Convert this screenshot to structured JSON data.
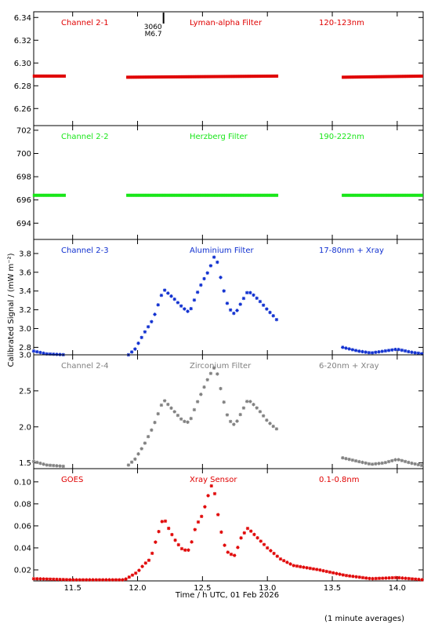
{
  "chart_data": [
    {
      "type": "scatter",
      "labels": [
        "Channel 2-1",
        "Lyman-alpha Filter",
        "120-123nm"
      ],
      "color": "#e00000",
      "ylim": [
        6.245,
        6.345
      ],
      "yticks": [
        6.26,
        6.28,
        6.3,
        6.32,
        6.34
      ],
      "ytick_labels": [
        "6.26",
        "6.28",
        "6.30",
        "6.32",
        "6.34"
      ],
      "annotation": {
        "x": 12.2,
        "lines": [
          "3060",
          "M6.7"
        ]
      },
      "segments": [
        {
          "x": [
            11.2,
            11.45
          ],
          "y": [
            6.2885,
            6.2885
          ]
        },
        {
          "x": [
            11.92,
            13.08
          ],
          "y": [
            6.2875,
            6.2885
          ]
        },
        {
          "x": [
            13.58,
            14.2
          ],
          "y": [
            6.2875,
            6.2885
          ]
        }
      ]
    },
    {
      "type": "scatter",
      "labels": [
        "Channel 2-2",
        "Herzberg Filter",
        "190-222nm"
      ],
      "color": "#19e619",
      "ylim": [
        692.6,
        702.4
      ],
      "yticks": [
        694,
        696,
        698,
        700,
        702
      ],
      "ytick_labels": [
        "694",
        "696",
        "698",
        "700",
        "702"
      ],
      "segments": [
        {
          "x": [
            11.2,
            11.45
          ],
          "y": [
            696.4,
            696.4
          ]
        },
        {
          "x": [
            11.92,
            13.08
          ],
          "y": [
            696.4,
            696.4
          ]
        },
        {
          "x": [
            13.58,
            14.2
          ],
          "y": [
            696.4,
            696.4
          ]
        }
      ]
    },
    {
      "type": "scatter",
      "labels": [
        "Channel 2-3",
        "Aluminium Filter",
        "17-80nm + Xray"
      ],
      "color": "#1030d0",
      "ylim": [
        2.72,
        3.95
      ],
      "yticks": [
        2.8,
        3.0,
        3.2,
        3.4,
        3.6,
        3.8
      ],
      "ytick_labels": [
        "2.8",
        "3.0",
        "3.2",
        "3.4",
        "3.6",
        "3.8"
      ],
      "series": [
        {
          "x": [
            11.2,
            11.3,
            11.45
          ],
          "y": [
            2.76,
            2.73,
            2.72
          ]
        },
        {
          "x": [
            11.93,
            11.98,
            12.05,
            12.12,
            12.2,
            12.28,
            12.35,
            12.4,
            12.45,
            12.5,
            12.55,
            12.6,
            12.65,
            12.7,
            12.75,
            12.8,
            12.85,
            12.9,
            12.95,
            13.0,
            13.05,
            13.08
          ],
          "y": [
            2.72,
            2.78,
            2.95,
            3.1,
            3.42,
            3.32,
            3.22,
            3.17,
            3.35,
            3.5,
            3.62,
            3.8,
            3.48,
            3.22,
            3.15,
            3.28,
            3.4,
            3.35,
            3.28,
            3.2,
            3.13,
            3.08
          ]
        },
        {
          "x": [
            13.58,
            13.7,
            13.8,
            13.9,
            14.0,
            14.1,
            14.2
          ],
          "y": [
            2.8,
            2.76,
            2.74,
            2.76,
            2.78,
            2.75,
            2.73
          ]
        }
      ]
    },
    {
      "type": "scatter",
      "labels": [
        "Channel 2-4",
        "Zirconium Filter",
        "6-20nm + Xray"
      ],
      "color": "#808080",
      "ylim": [
        1.42,
        3.0
      ],
      "yticks": [
        1.5,
        2.0,
        2.5,
        3.0
      ],
      "ytick_labels": [
        "1.5",
        "2.0",
        "2.5",
        "3.0"
      ],
      "series": [
        {
          "x": [
            11.2,
            11.3,
            11.45
          ],
          "y": [
            1.52,
            1.47,
            1.45
          ]
        },
        {
          "x": [
            11.93,
            11.98,
            12.05,
            12.12,
            12.2,
            12.28,
            12.35,
            12.4,
            12.45,
            12.5,
            12.55,
            12.6,
            12.65,
            12.7,
            12.75,
            12.8,
            12.85,
            12.9,
            12.95,
            13.0,
            13.05,
            13.08
          ],
          "y": [
            1.47,
            1.55,
            1.75,
            2.0,
            2.38,
            2.22,
            2.08,
            2.06,
            2.3,
            2.5,
            2.7,
            2.85,
            2.45,
            2.1,
            2.02,
            2.2,
            2.38,
            2.3,
            2.2,
            2.08,
            2.0,
            1.96
          ]
        },
        {
          "x": [
            13.58,
            13.7,
            13.8,
            13.9,
            14.0,
            14.1,
            14.2
          ],
          "y": [
            1.57,
            1.52,
            1.48,
            1.5,
            1.55,
            1.5,
            1.46
          ]
        }
      ]
    },
    {
      "type": "scatter",
      "labels": [
        "GOES",
        "Xray Sensor",
        "0.1-0.8nm"
      ],
      "color": "#e00000",
      "ylim": [
        0.01,
        0.112
      ],
      "yticks": [
        0.02,
        0.04,
        0.06,
        0.08,
        0.1
      ],
      "ytick_labels": [
        "0.02",
        "0.04",
        "0.06",
        "0.08",
        "0.10"
      ],
      "series": [
        {
          "x": [
            11.2,
            11.5,
            11.9,
            12.0,
            12.05,
            12.1,
            12.15,
            12.2,
            12.25,
            12.3,
            12.35,
            12.4,
            12.45,
            12.5,
            12.55,
            12.58,
            12.62,
            12.66,
            12.7,
            12.75,
            12.8,
            12.85,
            12.9,
            13.0,
            13.1,
            13.2,
            13.4,
            13.6,
            13.8,
            14.0,
            14.2
          ],
          "y": [
            0.012,
            0.011,
            0.011,
            0.018,
            0.025,
            0.03,
            0.05,
            0.068,
            0.055,
            0.045,
            0.038,
            0.038,
            0.06,
            0.07,
            0.09,
            0.1,
            0.07,
            0.045,
            0.035,
            0.033,
            0.05,
            0.058,
            0.052,
            0.04,
            0.03,
            0.024,
            0.02,
            0.015,
            0.012,
            0.013,
            0.011
          ]
        }
      ]
    }
  ],
  "axes": {
    "xlim": [
      11.2,
      14.2
    ],
    "xticks": [
      11.5,
      12.0,
      12.5,
      13.0,
      13.5,
      14.0
    ],
    "xtick_labels": [
      "11.5",
      "12.0",
      "12.5",
      "13.0",
      "13.5",
      "14.0"
    ],
    "xlabel": "Time / h UTC, 01 Feb 2026",
    "ylabel": "Calibrated Signal / (mW m⁻²)"
  },
  "footer": {
    "note": "(1 minute averages)"
  }
}
